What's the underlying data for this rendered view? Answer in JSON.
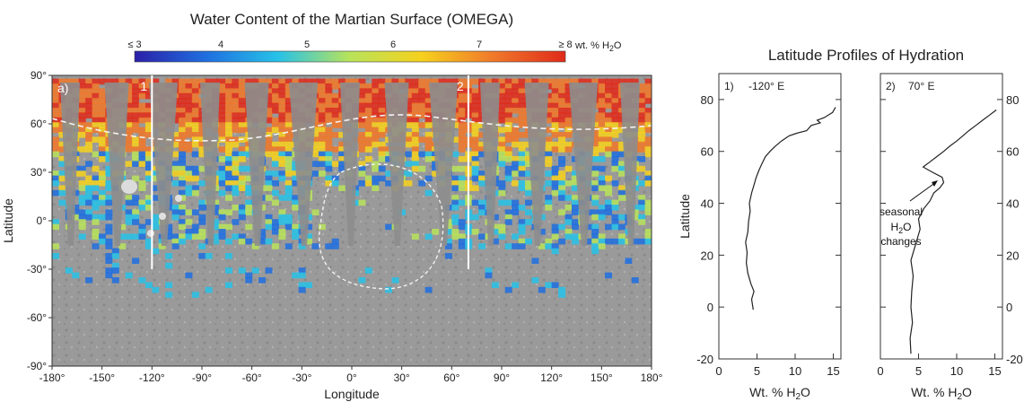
{
  "map_panel": {
    "title": "Water Content of the Martian Surface (OMEGA)",
    "panel_label": "a)",
    "profile_line_labels": [
      "1",
      "2"
    ],
    "profile_line_longitudes": [
      -120,
      70
    ],
    "colorbar": {
      "tick_labels": [
        "≤ 3",
        "4",
        "5",
        "6",
        "7",
        "≥ 8"
      ],
      "tick_values": [
        3,
        4,
        5,
        6,
        7,
        8
      ],
      "unit_text": "wt. % H",
      "unit_sub": "2",
      "unit_tail": "O",
      "colors": [
        "#2b1fa8",
        "#1f6fe0",
        "#27c2e8",
        "#b8e35a",
        "#f6d11d",
        "#f0782a",
        "#e02a1a"
      ]
    },
    "xlabel": "Longitude",
    "ylabel": "Latitude",
    "x_ticks": [
      "-180°",
      "-150°",
      "-120°",
      "-90°",
      "-60°",
      "-30°",
      "0°",
      "30°",
      "60°",
      "90°",
      "120°",
      "150°",
      "180°"
    ],
    "y_ticks": [
      "90°",
      "60°",
      "30°",
      "0°",
      "-30°",
      "-60°",
      "-90°"
    ],
    "xlim": [
      -180,
      180
    ],
    "ylim": [
      -90,
      90
    ]
  },
  "profiles_title": "Latitude Profiles of Hydration",
  "annotation": {
    "line1": "seasonal",
    "line2_main": "H",
    "line2_sub": "2",
    "line2_tail": "O",
    "line3": "changes"
  },
  "chart_data": [
    {
      "type": "line",
      "panel_label": "1)",
      "header": "-120° E",
      "xlabel_main": "Wt. % H",
      "xlabel_sub": "2",
      "xlabel_tail": "O",
      "ylabel": "Latitude",
      "xlim": [
        0,
        16
      ],
      "ylim": [
        -20,
        90
      ],
      "x_ticks": [
        0,
        5,
        10,
        15
      ],
      "y_ticks": [
        -20,
        0,
        20,
        40,
        60,
        80
      ],
      "series": [
        {
          "x": [
            4.5,
            4.3,
            4.6,
            4.2,
            3.8,
            3.6,
            3.7,
            3.5,
            3.8,
            3.9,
            4.1,
            4.0,
            4.3,
            4.6,
            4.9,
            5.3,
            5.6,
            6.1,
            6.7,
            7.4,
            8.2,
            9.2,
            10.2,
            11.5,
            12.1,
            13.3,
            12.9,
            13.8,
            14.9,
            15.3
          ],
          "y": [
            -1,
            3,
            6,
            9,
            13,
            17,
            21,
            25,
            29,
            33,
            37,
            40,
            44,
            47,
            50,
            53,
            55,
            58,
            60,
            62,
            64,
            66,
            67,
            68,
            70,
            71,
            72,
            73,
            75,
            77
          ]
        }
      ]
    },
    {
      "type": "line",
      "panel_label": "2)",
      "header": "70° E",
      "xlabel_main": "Wt. % H",
      "xlabel_sub": "2",
      "xlabel_tail": "O",
      "ylabel": "",
      "xlim": [
        0,
        16
      ],
      "ylim": [
        -20,
        90
      ],
      "x_ticks": [
        0,
        5,
        10,
        15
      ],
      "y_ticks": [
        -20,
        0,
        20,
        40,
        60,
        80
      ],
      "series": [
        {
          "x": [
            4.0,
            3.9,
            4.2,
            4.0,
            4.1,
            4.3,
            4.0,
            4.4,
            4.8,
            5.2,
            5.0,
            5.7,
            6.5,
            7.0,
            7.8,
            8.3,
            8.1,
            6.8,
            5.6,
            6.5,
            7.4,
            8.3,
            9.1,
            10.0,
            10.8,
            11.6,
            12.5,
            13.4,
            14.3,
            15.2
          ],
          "y": [
            -18,
            -12,
            -6,
            0,
            6,
            12,
            18,
            22,
            26,
            30,
            34,
            38,
            41,
            44,
            46,
            48,
            50,
            52,
            54,
            56,
            58,
            60,
            62,
            64,
            66,
            68,
            70,
            72,
            74,
            76
          ]
        }
      ]
    }
  ]
}
